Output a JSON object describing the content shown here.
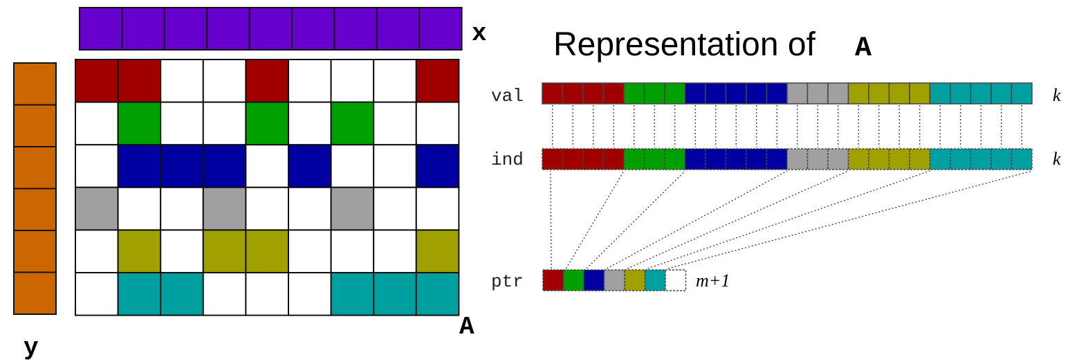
{
  "colors": {
    "red": "#A00000",
    "green": "#00A000",
    "blue": "#0000A0",
    "gray": "#A0A0A0",
    "olive": "#A0A000",
    "teal": "#00A0A0",
    "purple": "#6600CC",
    "orange": "#CC6600",
    "white": "#FFFFFF",
    "stroke": "#222222",
    "dotted": "#333333"
  },
  "labels": {
    "x_vector": "x",
    "y_vector": "y",
    "matrix": "A",
    "title_prefix": "Representation of",
    "title_symbol": "A",
    "val_row": "val",
    "ind_row": "ind",
    "ptr_row": "ptr",
    "val_length": "k",
    "ind_length": "k",
    "ptr_length": "m+1"
  },
  "vectors": {
    "x_cells": 9,
    "y_cells": 6
  },
  "matrix": {
    "rows": [
      [
        "red",
        "red",
        "white",
        "white",
        "red",
        "white",
        "white",
        "white",
        "red"
      ],
      [
        "white",
        "green",
        "white",
        "white",
        "green",
        "white",
        "green",
        "white",
        "white"
      ],
      [
        "white",
        "blue",
        "blue",
        "blue",
        "white",
        "blue",
        "white",
        "white",
        "blue"
      ],
      [
        "gray",
        "white",
        "white",
        "gray",
        "white",
        "white",
        "gray",
        "white",
        "white"
      ],
      [
        "white",
        "olive",
        "white",
        "olive",
        "olive",
        "white",
        "white",
        "white",
        "olive"
      ],
      [
        "white",
        "teal",
        "teal",
        "white",
        "white",
        "white",
        "teal",
        "teal",
        "teal"
      ]
    ]
  },
  "csr": {
    "val": [
      "red",
      "red",
      "red",
      "red",
      "green",
      "green",
      "green",
      "blue",
      "blue",
      "blue",
      "blue",
      "blue",
      "gray",
      "gray",
      "gray",
      "olive",
      "olive",
      "olive",
      "olive",
      "teal",
      "teal",
      "teal",
      "teal",
      "teal"
    ],
    "ind": [
      "red",
      "red",
      "red",
      "red",
      "green",
      "green",
      "green",
      "blue",
      "blue",
      "blue",
      "blue",
      "blue",
      "gray",
      "gray",
      "gray",
      "olive",
      "olive",
      "olive",
      "olive",
      "teal",
      "teal",
      "teal",
      "teal",
      "teal"
    ],
    "ptr": [
      "red",
      "green",
      "blue",
      "gray",
      "olive",
      "teal",
      "white"
    ],
    "ptr_targets": [
      0,
      4,
      7,
      12,
      15,
      19,
      24
    ]
  }
}
